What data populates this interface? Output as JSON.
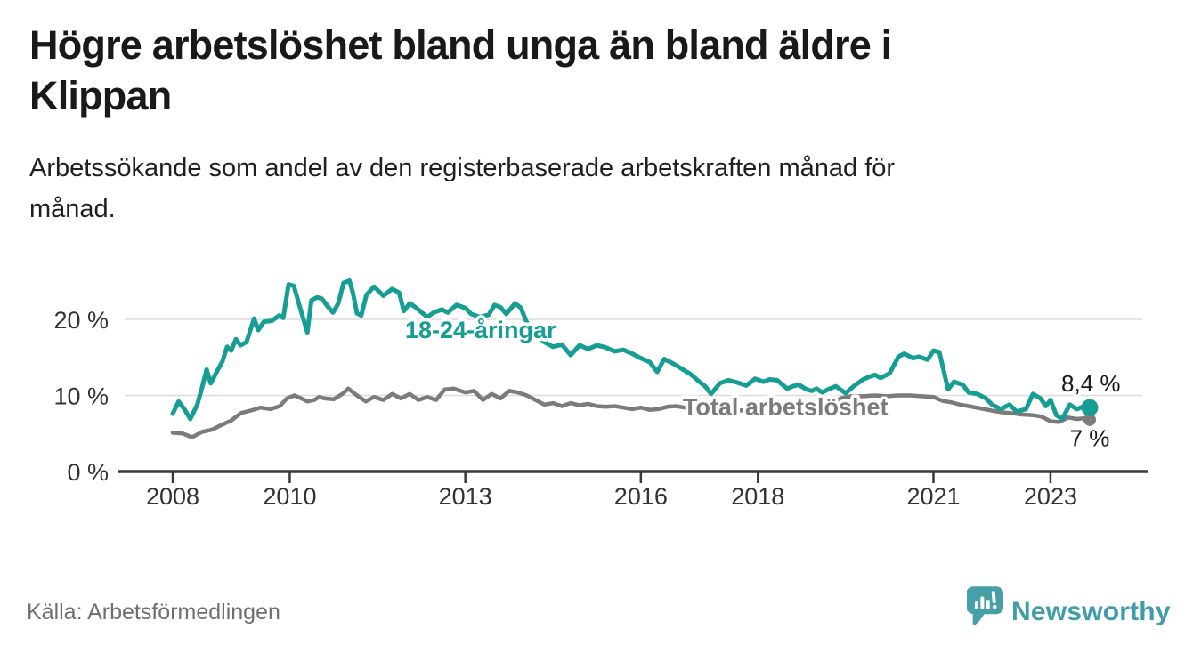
{
  "header": {
    "title_lines": [
      "Högre arbetslöshet bland unga än bland äldre i",
      "Klippan"
    ],
    "subtitle_lines": [
      "Arbetssökande som andel av den registerbaserade arbetskraften månad för",
      "månad."
    ]
  },
  "footer": {
    "source": "Källa: Arbetsförmedlingen",
    "brand": "Newsworthy"
  },
  "colors": {
    "accent_teal": "#169e94",
    "series_gray": "#7b7b7b",
    "end_label_text": "#1a1a1a",
    "axis": "#383838",
    "grid": "#dcdcdc",
    "tick_text": "#333333",
    "logo_bubble": "#47a0a8",
    "logo_wordmark": "#3e9da6"
  },
  "chart_data": {
    "type": "line",
    "title": "Högre arbetslöshet bland unga än bland äldre i Klippan",
    "subtitle": "Arbetssökande som andel av den registerbaserade arbetskraften månad för månad.",
    "xlabel": "",
    "ylabel": "",
    "xlim": [
      2007.9,
      2023.9
    ],
    "ylim": [
      0,
      26.5
    ],
    "grid": "horizontal",
    "legend_position": "inline-labels",
    "x_ticks": [
      2008,
      2010,
      2013,
      2016,
      2018,
      2021,
      2023
    ],
    "x_tick_labels": [
      "2008",
      "2010",
      "2013",
      "2016",
      "2018",
      "2021",
      "2023"
    ],
    "y_ticks": [
      0,
      10,
      20
    ],
    "y_tick_labels": [
      "0 %",
      "10 %",
      "20 %"
    ],
    "series": [
      {
        "name": "18-24-åringar",
        "color": "#169e94",
        "stroke_width": 5,
        "end_dot_radius": 9.5,
        "end_label": "8,4 %",
        "points": [
          [
            2008.0,
            7.6
          ],
          [
            2008.1,
            9.2
          ],
          [
            2008.2,
            8.2
          ],
          [
            2008.3,
            6.9
          ],
          [
            2008.42,
            8.8
          ],
          [
            2008.5,
            11.0
          ],
          [
            2008.58,
            13.4
          ],
          [
            2008.65,
            11.6
          ],
          [
            2008.78,
            13.5
          ],
          [
            2008.85,
            14.5
          ],
          [
            2008.93,
            16.4
          ],
          [
            2009.0,
            15.9
          ],
          [
            2009.08,
            17.4
          ],
          [
            2009.16,
            16.6
          ],
          [
            2009.26,
            17.0
          ],
          [
            2009.39,
            20.1
          ],
          [
            2009.46,
            18.6
          ],
          [
            2009.56,
            19.7
          ],
          [
            2009.69,
            19.8
          ],
          [
            2009.82,
            20.5
          ],
          [
            2009.89,
            20.2
          ],
          [
            2009.98,
            24.6
          ],
          [
            2010.07,
            24.4
          ],
          [
            2010.17,
            21.7
          ],
          [
            2010.3,
            18.3
          ],
          [
            2010.37,
            22.5
          ],
          [
            2010.47,
            22.9
          ],
          [
            2010.55,
            22.7
          ],
          [
            2010.67,
            21.5
          ],
          [
            2010.74,
            20.9
          ],
          [
            2010.83,
            22.1
          ],
          [
            2010.92,
            24.8
          ],
          [
            2011.02,
            25.1
          ],
          [
            2011.08,
            23.5
          ],
          [
            2011.15,
            20.8
          ],
          [
            2011.22,
            20.5
          ],
          [
            2011.31,
            23.2
          ],
          [
            2011.44,
            24.3
          ],
          [
            2011.6,
            23.1
          ],
          [
            2011.75,
            24.0
          ],
          [
            2011.87,
            23.5
          ],
          [
            2011.95,
            21.1
          ],
          [
            2012.05,
            22.1
          ],
          [
            2012.13,
            21.7
          ],
          [
            2012.35,
            20.3
          ],
          [
            2012.46,
            20.9
          ],
          [
            2012.6,
            21.3
          ],
          [
            2012.7,
            20.9
          ],
          [
            2012.85,
            21.9
          ],
          [
            2013.0,
            21.5
          ],
          [
            2013.1,
            20.7
          ],
          [
            2013.25,
            20.3
          ],
          [
            2013.4,
            20.6
          ],
          [
            2013.5,
            21.9
          ],
          [
            2013.6,
            21.6
          ],
          [
            2013.7,
            20.7
          ],
          [
            2013.85,
            22.1
          ],
          [
            2013.95,
            21.5
          ],
          [
            2014.05,
            19.6
          ],
          [
            2014.2,
            18.2
          ],
          [
            2014.35,
            17.0
          ],
          [
            2014.5,
            16.4
          ],
          [
            2014.65,
            16.7
          ],
          [
            2014.8,
            15.3
          ],
          [
            2014.95,
            16.6
          ],
          [
            2015.1,
            16.1
          ],
          [
            2015.25,
            16.6
          ],
          [
            2015.4,
            16.3
          ],
          [
            2015.55,
            15.8
          ],
          [
            2015.7,
            16.0
          ],
          [
            2015.85,
            15.5
          ],
          [
            2016.0,
            14.9
          ],
          [
            2016.15,
            14.4
          ],
          [
            2016.28,
            13.1
          ],
          [
            2016.4,
            14.8
          ],
          [
            2016.55,
            14.2
          ],
          [
            2016.7,
            13.5
          ],
          [
            2016.85,
            12.8
          ],
          [
            2017.0,
            11.8
          ],
          [
            2017.1,
            11.2
          ],
          [
            2017.2,
            10.2
          ],
          [
            2017.35,
            11.6
          ],
          [
            2017.5,
            12.0
          ],
          [
            2017.65,
            11.7
          ],
          [
            2017.8,
            11.3
          ],
          [
            2017.95,
            12.2
          ],
          [
            2018.1,
            11.8
          ],
          [
            2018.2,
            12.1
          ],
          [
            2018.33,
            12.0
          ],
          [
            2018.42,
            11.4
          ],
          [
            2018.5,
            10.9
          ],
          [
            2018.6,
            11.2
          ],
          [
            2018.7,
            11.4
          ],
          [
            2018.83,
            10.8
          ],
          [
            2018.92,
            10.6
          ],
          [
            2019.0,
            10.9
          ],
          [
            2019.1,
            10.4
          ],
          [
            2019.2,
            10.8
          ],
          [
            2019.33,
            11.2
          ],
          [
            2019.5,
            10.3
          ],
          [
            2019.65,
            11.3
          ],
          [
            2019.8,
            12.1
          ],
          [
            2019.92,
            12.5
          ],
          [
            2020.0,
            12.7
          ],
          [
            2020.1,
            12.3
          ],
          [
            2020.25,
            12.9
          ],
          [
            2020.4,
            15.1
          ],
          [
            2020.5,
            15.5
          ],
          [
            2020.65,
            14.9
          ],
          [
            2020.75,
            15.1
          ],
          [
            2020.9,
            14.7
          ],
          [
            2021.0,
            15.9
          ],
          [
            2021.1,
            15.7
          ],
          [
            2021.25,
            10.8
          ],
          [
            2021.35,
            11.8
          ],
          [
            2021.5,
            11.4
          ],
          [
            2021.6,
            10.4
          ],
          [
            2021.75,
            10.2
          ],
          [
            2021.9,
            9.6
          ],
          [
            2022.0,
            8.8
          ],
          [
            2022.15,
            8.2
          ],
          [
            2022.3,
            8.8
          ],
          [
            2022.42,
            7.9
          ],
          [
            2022.58,
            8.2
          ],
          [
            2022.7,
            10.2
          ],
          [
            2022.83,
            9.6
          ],
          [
            2022.92,
            8.6
          ],
          [
            2023.0,
            9.4
          ],
          [
            2023.1,
            7.4
          ],
          [
            2023.2,
            6.9
          ],
          [
            2023.33,
            8.8
          ],
          [
            2023.45,
            8.2
          ],
          [
            2023.58,
            8.6
          ],
          [
            2023.67,
            8.4
          ]
        ]
      },
      {
        "name": "Total arbetslöshet",
        "color": "#7b7b7b",
        "stroke_width": 4.5,
        "end_dot_radius": 7,
        "end_label": "7 %",
        "points": [
          [
            2008.0,
            5.1
          ],
          [
            2008.17,
            5.0
          ],
          [
            2008.33,
            4.5
          ],
          [
            2008.5,
            5.2
          ],
          [
            2008.67,
            5.5
          ],
          [
            2008.83,
            6.1
          ],
          [
            2009.0,
            6.7
          ],
          [
            2009.17,
            7.7
          ],
          [
            2009.33,
            8.0
          ],
          [
            2009.5,
            8.4
          ],
          [
            2009.67,
            8.2
          ],
          [
            2009.83,
            8.6
          ],
          [
            2009.95,
            9.6
          ],
          [
            2010.08,
            10.0
          ],
          [
            2010.2,
            9.6
          ],
          [
            2010.3,
            9.2
          ],
          [
            2010.42,
            9.4
          ],
          [
            2010.5,
            9.8
          ],
          [
            2010.6,
            9.6
          ],
          [
            2010.75,
            9.5
          ],
          [
            2010.9,
            10.2
          ],
          [
            2011.0,
            10.9
          ],
          [
            2011.15,
            10.0
          ],
          [
            2011.3,
            9.2
          ],
          [
            2011.44,
            9.8
          ],
          [
            2011.6,
            9.4
          ],
          [
            2011.75,
            10.2
          ],
          [
            2011.9,
            9.6
          ],
          [
            2012.05,
            10.2
          ],
          [
            2012.2,
            9.4
          ],
          [
            2012.35,
            9.8
          ],
          [
            2012.5,
            9.4
          ],
          [
            2012.65,
            10.8
          ],
          [
            2012.8,
            10.9
          ],
          [
            2013.0,
            10.4
          ],
          [
            2013.15,
            10.6
          ],
          [
            2013.3,
            9.4
          ],
          [
            2013.45,
            10.2
          ],
          [
            2013.6,
            9.6
          ],
          [
            2013.75,
            10.6
          ],
          [
            2013.9,
            10.4
          ],
          [
            2014.05,
            10.0
          ],
          [
            2014.2,
            9.4
          ],
          [
            2014.35,
            8.8
          ],
          [
            2014.5,
            9.0
          ],
          [
            2014.65,
            8.6
          ],
          [
            2014.8,
            9.0
          ],
          [
            2014.95,
            8.7
          ],
          [
            2015.1,
            8.9
          ],
          [
            2015.25,
            8.6
          ],
          [
            2015.4,
            8.5
          ],
          [
            2015.55,
            8.6
          ],
          [
            2015.7,
            8.4
          ],
          [
            2015.85,
            8.2
          ],
          [
            2016.0,
            8.4
          ],
          [
            2016.15,
            8.1
          ],
          [
            2016.3,
            8.2
          ],
          [
            2016.45,
            8.5
          ],
          [
            2016.6,
            8.6
          ],
          [
            2016.75,
            8.4
          ],
          [
            2016.9,
            8.1
          ],
          [
            2017.05,
            8.0
          ],
          [
            2017.25,
            7.9
          ],
          [
            2017.45,
            8.0
          ],
          [
            2017.65,
            8.0
          ],
          [
            2017.85,
            8.1
          ],
          [
            2018.05,
            8.2
          ],
          [
            2018.25,
            8.1
          ],
          [
            2018.45,
            8.3
          ],
          [
            2018.65,
            8.3
          ],
          [
            2018.85,
            8.5
          ],
          [
            2019.05,
            8.7
          ],
          [
            2019.25,
            9.1
          ],
          [
            2019.45,
            9.7
          ],
          [
            2019.6,
            9.9
          ],
          [
            2019.8,
            9.9
          ],
          [
            2020.0,
            10.0
          ],
          [
            2020.2,
            9.9
          ],
          [
            2020.4,
            10.0
          ],
          [
            2020.6,
            10.0
          ],
          [
            2020.8,
            9.9
          ],
          [
            2021.0,
            9.8
          ],
          [
            2021.15,
            9.3
          ],
          [
            2021.3,
            9.1
          ],
          [
            2021.45,
            8.8
          ],
          [
            2021.6,
            8.6
          ],
          [
            2021.8,
            8.3
          ],
          [
            2022.0,
            8.0
          ],
          [
            2022.15,
            7.8
          ],
          [
            2022.3,
            7.7
          ],
          [
            2022.5,
            7.5
          ],
          [
            2022.7,
            7.4
          ],
          [
            2022.85,
            7.2
          ],
          [
            2023.0,
            6.6
          ],
          [
            2023.15,
            6.5
          ],
          [
            2023.3,
            7.1
          ],
          [
            2023.45,
            6.9
          ],
          [
            2023.58,
            7.0
          ],
          [
            2023.67,
            6.8
          ]
        ]
      }
    ],
    "annotations": [
      {
        "text": "18-24-åringar",
        "x": 2013.26,
        "y": 18.6,
        "color": "#169e94",
        "size": 27,
        "weight": 700,
        "name": "series-label-youth"
      },
      {
        "text": "Total arbetslöshet",
        "x": 2018.47,
        "y": 8.5,
        "color": "#7b7b7b",
        "size": 27,
        "weight": 700,
        "name": "series-label-total"
      },
      {
        "text": "8,4 %",
        "x": 2023.69,
        "y": 11.6,
        "color": "#1a1a1a",
        "size": 26,
        "weight": 400,
        "name": "end-value-label-youth"
      },
      {
        "text": "7 %",
        "x": 2023.67,
        "y": 4.4,
        "color": "#1a1a1a",
        "size": 26,
        "weight": 400,
        "name": "end-value-label-total"
      }
    ]
  }
}
